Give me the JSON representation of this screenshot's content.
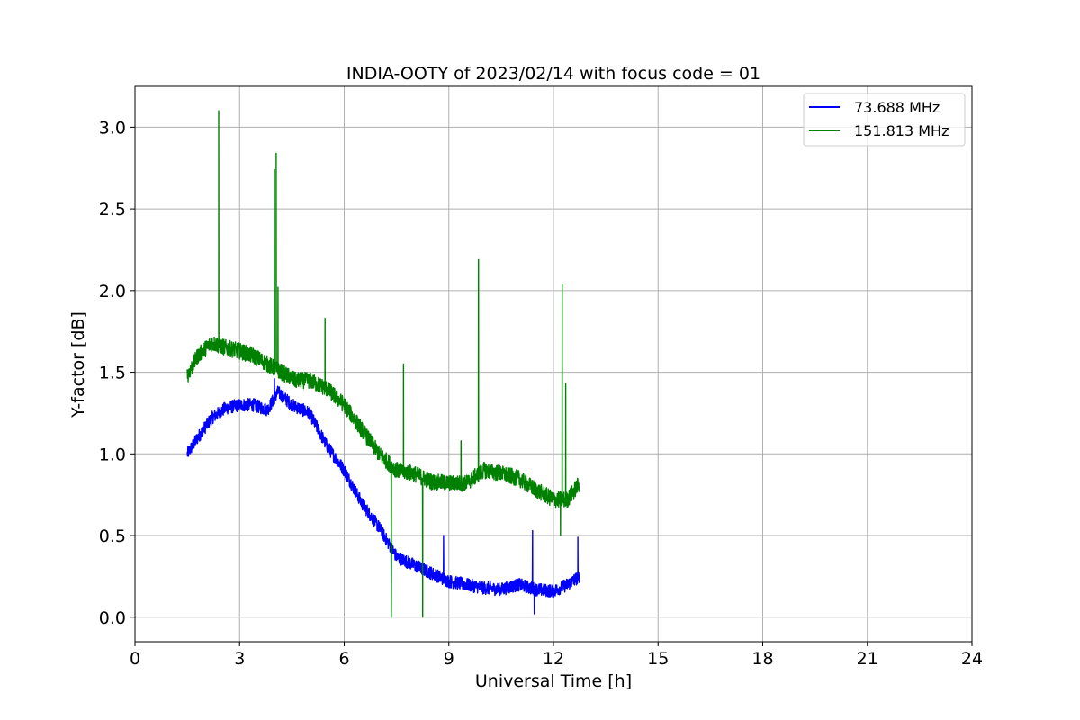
{
  "chart_data": {
    "type": "line",
    "title": "INDIA-OOTY of 2023/02/14 with focus code = 01",
    "xlabel": "Universal Time [h]",
    "ylabel": "Y-factor [dB]",
    "xlim": [
      0,
      24
    ],
    "ylim": [
      -0.15,
      3.25
    ],
    "xticks": [
      0,
      3,
      6,
      9,
      12,
      15,
      18,
      21,
      24
    ],
    "xtick_labels": [
      "0",
      "3",
      "6",
      "9",
      "12",
      "15",
      "18",
      "21",
      "24"
    ],
    "yticks": [
      0.0,
      0.5,
      1.0,
      1.5,
      2.0,
      2.5,
      3.0
    ],
    "ytick_labels": [
      "0.0",
      "0.5",
      "1.0",
      "1.5",
      "2.0",
      "2.5",
      "3.0"
    ],
    "grid": true,
    "legend_position": "top-right",
    "series": [
      {
        "name": " 73.688 MHz",
        "color": "#0000ff",
        "noise": 0.04,
        "x": [
          1.5,
          1.8,
          2.2,
          2.6,
          3.0,
          3.4,
          3.8,
          4.1,
          4.5,
          5.0,
          5.5,
          6.0,
          6.5,
          7.0,
          7.5,
          8.0,
          8.5,
          9.0,
          9.5,
          10.0,
          10.5,
          11.0,
          11.5,
          12.0,
          12.4,
          12.75
        ],
        "y": [
          1.0,
          1.1,
          1.22,
          1.28,
          1.3,
          1.3,
          1.27,
          1.38,
          1.3,
          1.25,
          1.05,
          0.9,
          0.7,
          0.55,
          0.37,
          0.32,
          0.27,
          0.22,
          0.2,
          0.18,
          0.17,
          0.2,
          0.17,
          0.16,
          0.2,
          0.25
        ],
        "spikes": [
          {
            "x": 4.0,
            "y": 1.46
          },
          {
            "x": 7.35,
            "y": 0.01
          },
          {
            "x": 8.85,
            "y": 0.5
          },
          {
            "x": 11.4,
            "y": 0.53
          },
          {
            "x": 11.45,
            "y": 0.02
          },
          {
            "x": 12.7,
            "y": 0.49
          }
        ]
      },
      {
        "name": "151.813 MHz",
        "color": "#008000",
        "noise": 0.05,
        "x": [
          1.5,
          1.8,
          2.2,
          2.6,
          3.0,
          3.4,
          3.8,
          4.2,
          4.6,
          5.0,
          5.5,
          6.0,
          6.5,
          7.0,
          7.5,
          8.0,
          8.5,
          9.0,
          9.5,
          10.0,
          10.5,
          11.0,
          11.5,
          12.0,
          12.4,
          12.75
        ],
        "y": [
          1.48,
          1.6,
          1.68,
          1.65,
          1.63,
          1.6,
          1.55,
          1.5,
          1.45,
          1.45,
          1.4,
          1.3,
          1.15,
          1.0,
          0.9,
          0.88,
          0.83,
          0.82,
          0.82,
          0.9,
          0.88,
          0.85,
          0.78,
          0.72,
          0.72,
          0.82
        ],
        "spikes": [
          {
            "x": 2.4,
            "y": 3.1
          },
          {
            "x": 4.0,
            "y": 2.74
          },
          {
            "x": 4.05,
            "y": 2.84
          },
          {
            "x": 4.1,
            "y": 2.02
          },
          {
            "x": 5.45,
            "y": 1.83
          },
          {
            "x": 7.35,
            "y": 0.0
          },
          {
            "x": 7.7,
            "y": 1.55
          },
          {
            "x": 8.25,
            "y": 0.0
          },
          {
            "x": 9.35,
            "y": 1.08
          },
          {
            "x": 9.85,
            "y": 2.19
          },
          {
            "x": 12.25,
            "y": 2.04
          },
          {
            "x": 12.2,
            "y": 0.5
          },
          {
            "x": 12.35,
            "y": 1.43
          }
        ]
      }
    ]
  }
}
